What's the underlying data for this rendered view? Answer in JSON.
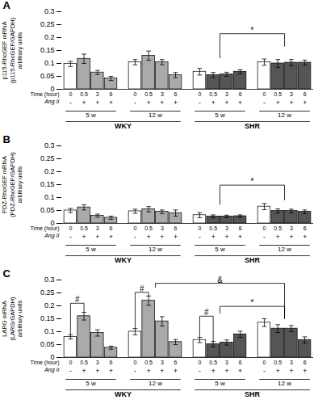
{
  "chart_data": [
    {
      "type": "bar",
      "title": "A",
      "ylabel": "p115-RhoGEF mRNA\n(p115-RhoGEF/GAPDH)\narbitrary units",
      "categories": [
        "5 w",
        "12 w",
        "5 w",
        "12 w"
      ],
      "main_groups": [
        "WKY",
        "WKY",
        "SHR",
        "SHR"
      ],
      "row_labels": [
        "Time (hour)",
        "Ang II"
      ],
      "series": [
        {
          "name": "0",
          "ang_ii": "-",
          "colors": [
            "white",
            "white",
            "white",
            "white"
          ],
          "values": [
            0.098,
            0.105,
            0.068,
            0.105
          ],
          "errors": [
            0.01,
            0.01,
            0.013,
            0.012
          ]
        },
        {
          "name": "0.5",
          "ang_ii": "+",
          "colors": [
            "#aaaaaa",
            "#aaaaaa",
            "#555555",
            "#555555"
          ],
          "values": [
            0.118,
            0.13,
            0.055,
            0.1
          ],
          "errors": [
            0.018,
            0.018,
            0.01,
            0.015
          ]
        },
        {
          "name": "3",
          "ang_ii": "+",
          "colors": [
            "#aaaaaa",
            "#aaaaaa",
            "#555555",
            "#555555"
          ],
          "values": [
            0.065,
            0.105,
            0.058,
            0.103
          ],
          "errors": [
            0.008,
            0.01,
            0.008,
            0.012
          ]
        },
        {
          "name": "6",
          "ang_ii": "+",
          "colors": [
            "#aaaaaa",
            "#aaaaaa",
            "#555555",
            "#555555"
          ],
          "values": [
            0.042,
            0.055,
            0.068,
            0.103
          ],
          "errors": [
            0.008,
            0.01,
            0.008,
            0.01
          ]
        }
      ],
      "annotations": [
        {
          "text": "*",
          "from": {
            "group": 2
          },
          "to": {
            "group": 3
          },
          "y": 0.215,
          "from_y": 0.12,
          "to_y": 0.165
        }
      ],
      "ylim": [
        0,
        0.3
      ],
      "yticks": [
        0,
        0.05,
        0.1,
        0.15,
        0.2,
        0.25,
        0.3
      ]
    },
    {
      "type": "bar",
      "title": "B",
      "ylabel": "PDZ-RhoGEF mRNA\n(PDZ-RhoGEF/GAPDH)\narbitrary units",
      "categories": [
        "5 w",
        "12 w",
        "5 w",
        "12 w"
      ],
      "main_groups": [
        "WKY",
        "WKY",
        "SHR",
        "SHR"
      ],
      "row_labels": [
        "Time (hour)",
        "Ang II"
      ],
      "series": [
        {
          "name": "0",
          "ang_ii": "-",
          "colors": [
            "white",
            "white",
            "white",
            "white"
          ],
          "values": [
            0.05,
            0.047,
            0.032,
            0.065
          ],
          "errors": [
            0.008,
            0.008,
            0.01,
            0.012
          ]
        },
        {
          "name": "0.5",
          "ang_ii": "+",
          "colors": [
            "#aaaaaa",
            "#aaaaaa",
            "#555555",
            "#555555"
          ],
          "values": [
            0.062,
            0.055,
            0.027,
            0.048
          ],
          "errors": [
            0.01,
            0.01,
            0.006,
            0.008
          ]
        },
        {
          "name": "3",
          "ang_ii": "+",
          "colors": [
            "#aaaaaa",
            "#aaaaaa",
            "#555555",
            "#555555"
          ],
          "values": [
            0.03,
            0.045,
            0.027,
            0.048
          ],
          "errors": [
            0.006,
            0.007,
            0.005,
            0.007
          ]
        },
        {
          "name": "6",
          "ang_ii": "+",
          "colors": [
            "#aaaaaa",
            "#aaaaaa",
            "#555555",
            "#555555"
          ],
          "values": [
            0.022,
            0.04,
            0.028,
            0.045
          ],
          "errors": [
            0.006,
            0.012,
            0.005,
            0.007
          ]
        }
      ],
      "annotations": [
        {
          "text": "*",
          "from": {
            "group": 2
          },
          "to": {
            "group": 3
          },
          "y": 0.148,
          "from_y": 0.072,
          "to_y": 0.09
        }
      ],
      "ylim": [
        0,
        0.3
      ],
      "yticks": [
        0,
        0.05,
        0.1,
        0.15,
        0.2,
        0.25,
        0.3
      ]
    },
    {
      "type": "bar",
      "title": "C",
      "ylabel": "LARG mRNA\n(LARG/GAPDH)\narbitrary units",
      "categories": [
        "5 w",
        "12 w",
        "5 w",
        "12 w"
      ],
      "main_groups": [
        "WKY",
        "WKY",
        "SHR",
        "SHR"
      ],
      "row_labels": [
        "Time (hour)",
        "Ang II"
      ],
      "series": [
        {
          "name": "0",
          "ang_ii": "-",
          "colors": [
            "white",
            "white",
            "white",
            "white"
          ],
          "values": [
            0.08,
            0.1,
            0.068,
            0.135
          ],
          "errors": [
            0.008,
            0.012,
            0.01,
            0.015
          ]
        },
        {
          "name": "0.5",
          "ang_ii": "+",
          "colors": [
            "#aaaaaa",
            "#aaaaaa",
            "#555555",
            "#555555"
          ],
          "values": [
            0.16,
            0.22,
            0.052,
            0.112
          ],
          "errors": [
            0.015,
            0.018,
            0.01,
            0.015
          ]
        },
        {
          "name": "3",
          "ang_ii": "+",
          "colors": [
            "#aaaaaa",
            "#aaaaaa",
            "#555555",
            "#555555"
          ],
          "values": [
            0.095,
            0.14,
            0.058,
            0.112
          ],
          "errors": [
            0.012,
            0.018,
            0.01,
            0.012
          ]
        },
        {
          "name": "6",
          "ang_ii": "+",
          "colors": [
            "#aaaaaa",
            "#aaaaaa",
            "#555555",
            "#555555"
          ],
          "values": [
            0.038,
            0.06,
            0.09,
            0.068
          ],
          "errors": [
            0.006,
            0.01,
            0.012,
            0.012
          ]
        }
      ],
      "annotations": [
        {
          "text": "#",
          "from": {
            "group": 0,
            "bar": 0
          },
          "to": {
            "group": 0,
            "bar": 1
          },
          "y": 0.21,
          "from_y": 0.088,
          "to_y": 0.175
        },
        {
          "text": "#",
          "from": {
            "group": 1,
            "bar": 0
          },
          "to": {
            "group": 1,
            "bar": 1
          },
          "y": 0.252,
          "from_y": 0.112,
          "to_y": 0.238
        },
        {
          "text": "#",
          "from": {
            "group": 2,
            "bar": 0
          },
          "to": {
            "group": 2,
            "bar": 1
          },
          "y": 0.16,
          "from_y": 0.078,
          "to_y": 0.062
        },
        {
          "text": "*",
          "from": {
            "group": 2
          },
          "to": {
            "group": 3
          },
          "y": 0.198,
          "from_y": 0.17,
          "to_y": 0.15
        },
        {
          "text": "&",
          "from": {
            "group": 1
          },
          "to": {
            "group": 3
          },
          "y": 0.287,
          "from_y": 0.27,
          "to_y": 0.15
        }
      ],
      "ylim": [
        0,
        0.3
      ],
      "yticks": [
        0,
        0.05,
        0.1,
        0.15,
        0.2,
        0.25,
        0.3
      ]
    }
  ]
}
